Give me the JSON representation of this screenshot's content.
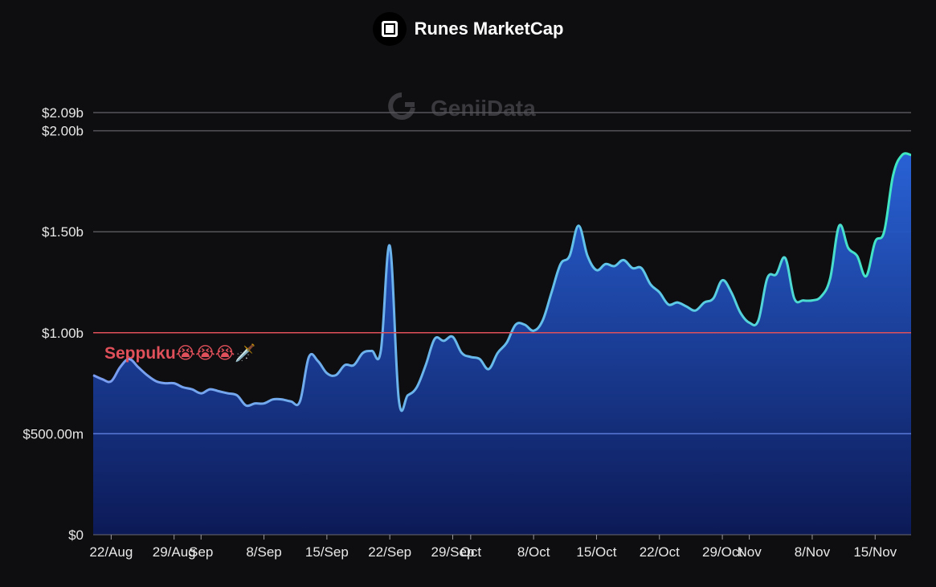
{
  "header": {
    "title": "Runes MarketCap",
    "icon": "square-icon"
  },
  "watermark": {
    "text": "GeniiData"
  },
  "colors": {
    "background": "#0e0e10",
    "grid": "#55555a",
    "threshold": "#e0505a",
    "line_start": "#7a9cf0",
    "line_end": "#3ee8c0",
    "area_top": "#2a66e0",
    "area_bottom": "#0c1a5a"
  },
  "chart_data": {
    "type": "area",
    "title": "Runes MarketCap",
    "xlabel": "",
    "ylabel": "",
    "ylim": [
      0,
      2.09
    ],
    "ylim_unit": "billion USD",
    "grid": true,
    "y_ticks": [
      {
        "value": 0,
        "label": "$0"
      },
      {
        "value": 0.5,
        "label": "$500.00m"
      },
      {
        "value": 1.0,
        "label": "$1.00b"
      },
      {
        "value": 1.5,
        "label": "$1.50b"
      },
      {
        "value": 2.0,
        "label": "$2.00b"
      },
      {
        "value": 2.09,
        "label": "$2.09b"
      }
    ],
    "x_ticks": [
      {
        "date": "2024-08-22",
        "label": "22/Aug"
      },
      {
        "date": "2024-08-29",
        "label": "29/Aug"
      },
      {
        "date": "2024-09-01",
        "label": "Sep"
      },
      {
        "date": "2024-09-08",
        "label": "8/Sep"
      },
      {
        "date": "2024-09-15",
        "label": "15/Sep"
      },
      {
        "date": "2024-09-22",
        "label": "22/Sep"
      },
      {
        "date": "2024-09-29",
        "label": "29/Sep"
      },
      {
        "date": "2024-10-01",
        "label": "Oct"
      },
      {
        "date": "2024-10-08",
        "label": "8/Oct"
      },
      {
        "date": "2024-10-15",
        "label": "15/Oct"
      },
      {
        "date": "2024-10-22",
        "label": "22/Oct"
      },
      {
        "date": "2024-10-29",
        "label": "29/Oct"
      },
      {
        "date": "2024-11-01",
        "label": "Nov"
      },
      {
        "date": "2024-11-08",
        "label": "8/Nov"
      },
      {
        "date": "2024-11-15",
        "label": "15/Nov"
      }
    ],
    "threshold": {
      "value": 1.0,
      "label": "Seppuku😭😭😭🗡️"
    },
    "series": [
      {
        "x": [
          "2024-08-20",
          "2024-08-21",
          "2024-08-22",
          "2024-08-23",
          "2024-08-24",
          "2024-08-25",
          "2024-08-26",
          "2024-08-27",
          "2024-08-28",
          "2024-08-29",
          "2024-08-30",
          "2024-08-31",
          "2024-09-01",
          "2024-09-02",
          "2024-09-03",
          "2024-09-04",
          "2024-09-05",
          "2024-09-06",
          "2024-09-07",
          "2024-09-08",
          "2024-09-09",
          "2024-09-10",
          "2024-09-11",
          "2024-09-12",
          "2024-09-13",
          "2024-09-14",
          "2024-09-15",
          "2024-09-16",
          "2024-09-17",
          "2024-09-18",
          "2024-09-19",
          "2024-09-20",
          "2024-09-21",
          "2024-09-22",
          "2024-09-23",
          "2024-09-24",
          "2024-09-25",
          "2024-09-26",
          "2024-09-27",
          "2024-09-28",
          "2024-09-29",
          "2024-09-30",
          "2024-10-01",
          "2024-10-02",
          "2024-10-03",
          "2024-10-04",
          "2024-10-05",
          "2024-10-06",
          "2024-10-07",
          "2024-10-08",
          "2024-10-09",
          "2024-10-10",
          "2024-10-11",
          "2024-10-12",
          "2024-10-13",
          "2024-10-14",
          "2024-10-15",
          "2024-10-16",
          "2024-10-17",
          "2024-10-18",
          "2024-10-19",
          "2024-10-20",
          "2024-10-21",
          "2024-10-22",
          "2024-10-23",
          "2024-10-24",
          "2024-10-25",
          "2024-10-26",
          "2024-10-27",
          "2024-10-28",
          "2024-10-29",
          "2024-10-30",
          "2024-10-31",
          "2024-11-01",
          "2024-11-02",
          "2024-11-03",
          "2024-11-04",
          "2024-11-05",
          "2024-11-06",
          "2024-11-07",
          "2024-11-08",
          "2024-11-09",
          "2024-11-10",
          "2024-11-11",
          "2024-11-12",
          "2024-11-13",
          "2024-11-14",
          "2024-11-15",
          "2024-11-16",
          "2024-11-17",
          "2024-11-18",
          "2024-11-19"
        ],
        "values": [
          0.79,
          0.77,
          0.76,
          0.83,
          0.87,
          0.83,
          0.79,
          0.76,
          0.75,
          0.75,
          0.73,
          0.72,
          0.7,
          0.72,
          0.71,
          0.7,
          0.69,
          0.64,
          0.65,
          0.65,
          0.67,
          0.67,
          0.66,
          0.66,
          0.88,
          0.86,
          0.8,
          0.79,
          0.84,
          0.84,
          0.9,
          0.91,
          0.91,
          1.43,
          0.67,
          0.69,
          0.73,
          0.84,
          0.97,
          0.96,
          0.98,
          0.9,
          0.88,
          0.87,
          0.82,
          0.9,
          0.95,
          1.04,
          1.04,
          1.01,
          1.06,
          1.2,
          1.34,
          1.38,
          1.53,
          1.38,
          1.31,
          1.34,
          1.33,
          1.36,
          1.32,
          1.32,
          1.24,
          1.2,
          1.14,
          1.15,
          1.13,
          1.11,
          1.15,
          1.17,
          1.26,
          1.2,
          1.1,
          1.05,
          1.06,
          1.27,
          1.29,
          1.37,
          1.17,
          1.16,
          1.16,
          1.18,
          1.27,
          1.53,
          1.42,
          1.38,
          1.28,
          1.45,
          1.5,
          1.78,
          1.88,
          1.88
        ]
      }
    ]
  }
}
